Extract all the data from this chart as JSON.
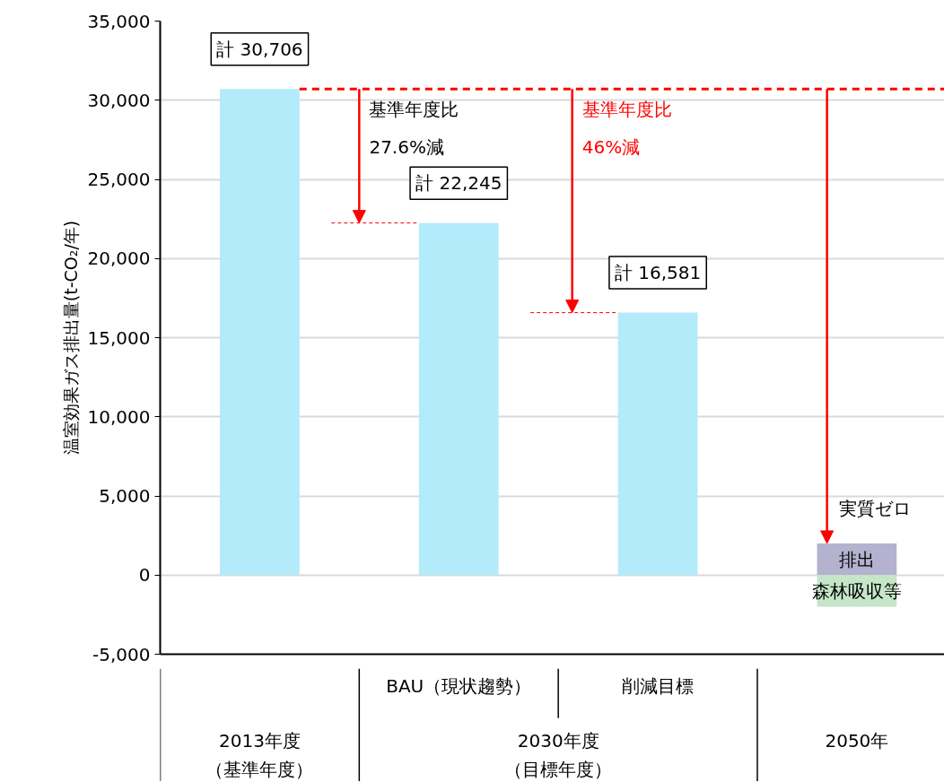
{
  "chart_data": {
    "type": "bar",
    "ylabel": "温室効果ガス排出量(t-CO₂/年)",
    "categories": [
      null,
      "BAU（現状趨勢）",
      "削減目標",
      null
    ],
    "series": [
      {
        "color": "#b3ebfa",
        "values": [
          30706,
          22245,
          16581,
          null
        ],
        "value_labels": [
          "計 30,706",
          "計 22,245",
          "計 16,581",
          null
        ]
      },
      {
        "name": "排出",
        "color": "#b4b2cf",
        "values": [
          null,
          null,
          null,
          2000
        ]
      },
      {
        "name": "森林吸収等",
        "color": "#c5e6c8",
        "values": [
          null,
          null,
          null,
          -2000
        ]
      }
    ],
    "ylim": [
      -5000,
      35000
    ],
    "yticks": [
      {
        "value": -5000,
        "label": "-5,000"
      },
      {
        "value": 0,
        "label": "0"
      },
      {
        "value": 5000,
        "label": "5,000"
      },
      {
        "value": 10000,
        "label": "10,000"
      },
      {
        "value": 15000,
        "label": "15,000"
      },
      {
        "value": 20000,
        "label": "20,000"
      },
      {
        "value": 25000,
        "label": "25,000"
      },
      {
        "value": 30000,
        "label": "30,000"
      },
      {
        "value": 35000,
        "label": "35,000"
      }
    ],
    "grid": "y",
    "ref_lines": [
      {
        "axis": "y",
        "value": 30706,
        "color": "#ff0000",
        "line_style": "dashed"
      },
      {
        "axis": "y",
        "value": 22245,
        "color": "#ff0000",
        "line_style": "dashed"
      },
      {
        "axis": "y",
        "value": 16581,
        "color": "#ff0000",
        "line_style": "dashed"
      }
    ],
    "annotations": [
      {
        "text": "基準年度比\n27.6%減",
        "y": 30706
      },
      {
        "text": "基準年度比\n46%減",
        "y": 30706
      },
      {
        "text": "実質ゼロ",
        "y": 2000
      },
      "2013年度",
      "（基準年度）",
      "2030年度",
      "（目標年度）",
      "2050年"
    ]
  }
}
